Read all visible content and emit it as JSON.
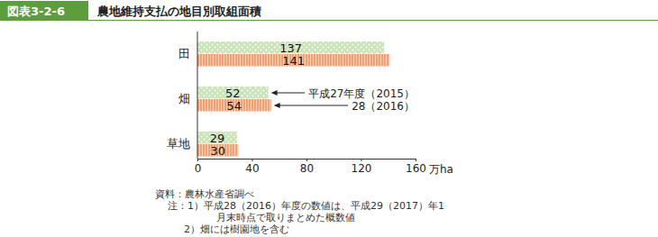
{
  "chart_data": {
    "type": "bar",
    "orientation": "horizontal",
    "figure_label": "図表3-2-6",
    "title": "農地維持支払の地目別取組面積",
    "categories": [
      "田",
      "畑",
      "草地"
    ],
    "series": [
      {
        "name": "平成27年度（2015）",
        "color": "#c9e4b6",
        "values": [
          137,
          52,
          29
        ]
      },
      {
        "name": "28（2016）",
        "color": "#f5a070",
        "values": [
          141,
          54,
          30
        ]
      }
    ],
    "x_label": "万ha",
    "xlim": [
      0,
      160
    ],
    "xticks": [
      0,
      40,
      80,
      120,
      160
    ],
    "data_labels": true,
    "grid": false,
    "source": "資料：農林水産省調べ",
    "notes": [
      "注：1）平成28（2016）年度の数値は、平成29（2017）年1",
      "月末時点で取りまとめた概数値",
      "2）畑には樹園地を含む"
    ]
  }
}
